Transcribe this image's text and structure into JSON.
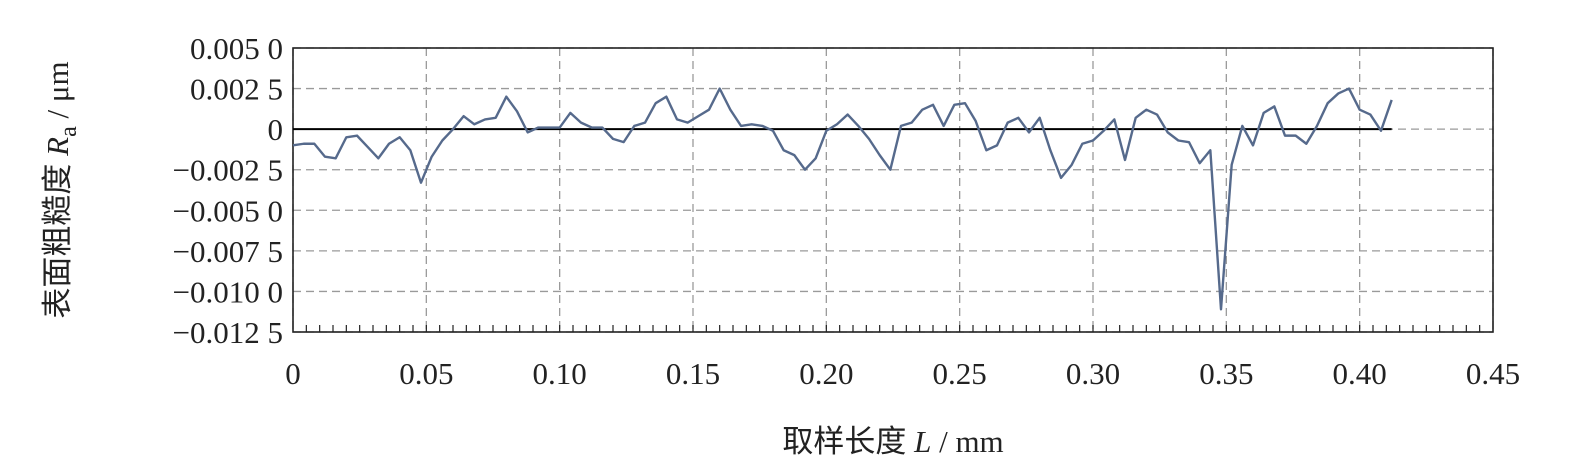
{
  "chart_data": {
    "type": "line",
    "xlabel": [
      "取样长度 ",
      "L",
      " / mm"
    ],
    "ylabel": [
      "表面粗糙度 ",
      "R",
      "a",
      " / μm"
    ],
    "xlim": [
      0,
      0.45
    ],
    "ylim": [
      -0.0125,
      0.005
    ],
    "xticks": [
      0,
      0.05,
      {
        "value": 0.1,
        "label": "0.10"
      },
      0.15,
      {
        "value": 0.2,
        "label": "0.20"
      },
      0.25,
      {
        "value": 0.3,
        "label": "0.30"
      },
      0.35,
      {
        "value": 0.4,
        "label": "0.40"
      },
      0.45
    ],
    "yticks": [
      {
        "value": 0.005,
        "label": "0.005 0"
      },
      {
        "value": 0.0025,
        "label": "0.002 5"
      },
      0,
      {
        "value": -0.0025,
        "label": "−0.002 5"
      },
      {
        "value": -0.005,
        "label": "−0.005 0"
      },
      {
        "value": -0.0075,
        "label": "−0.007 5"
      },
      {
        "value": -0.01,
        "label": "−0.010 0"
      },
      {
        "value": -0.0125,
        "label": "−0.012 5"
      }
    ],
    "x_minor_tick_step": 0.005,
    "grid": true,
    "hline": 0,
    "series": [
      {
        "color": "#566a8c",
        "x": [
          0,
          0.004,
          0.008,
          0.012,
          0.016,
          0.02,
          0.024,
          0.028,
          0.032,
          0.036,
          0.04,
          0.044,
          0.048,
          0.052,
          0.056,
          0.06,
          0.064,
          0.068,
          0.072,
          0.076,
          0.08,
          0.084,
          0.088,
          0.092,
          0.096,
          0.1,
          0.104,
          0.108,
          0.112,
          0.116,
          0.12,
          0.124,
          0.128,
          0.132,
          0.136,
          0.14,
          0.144,
          0.148,
          0.152,
          0.156,
          0.16,
          0.164,
          0.168,
          0.172,
          0.176,
          0.18,
          0.184,
          0.188,
          0.192,
          0.196,
          0.2,
          0.204,
          0.208,
          0.212,
          0.216,
          0.22,
          0.224,
          0.228,
          0.232,
          0.236,
          0.24,
          0.244,
          0.248,
          0.252,
          0.256,
          0.26,
          0.264,
          0.268,
          0.272,
          0.276,
          0.28,
          0.284,
          0.288,
          0.292,
          0.296,
          0.3,
          0.304,
          0.308,
          0.312,
          0.316,
          0.32,
          0.324,
          0.328,
          0.332,
          0.336,
          0.34,
          0.344,
          0.348,
          0.352,
          0.356,
          0.36,
          0.364,
          0.368,
          0.372,
          0.376,
          0.38,
          0.384,
          0.388,
          0.392,
          0.396,
          0.4,
          0.404,
          0.408,
          0.412
        ],
        "values": [
          -0.001,
          -0.0009,
          -0.0009,
          -0.0017,
          -0.0018,
          -0.0005,
          -0.0004,
          -0.0011,
          -0.0018,
          -0.0009,
          -0.0005,
          -0.0013,
          -0.0033,
          -0.0017,
          -0.0007,
          0,
          0.0008,
          0.0003,
          0.0006,
          0.0007,
          0.002,
          0.0011,
          -0.0002,
          0.0001,
          0.0001,
          0.0001,
          0.001,
          0.0004,
          0.0001,
          0.0001,
          -0.0006,
          -0.0008,
          0.0002,
          0.0004,
          0.0016,
          0.002,
          0.0006,
          0.0004,
          0.0008,
          0.0012,
          0.0025,
          0.0012,
          0.0002,
          0.0003,
          0.0002,
          -0.0001,
          -0.0013,
          -0.0016,
          -0.0025,
          -0.0018,
          -0.0001,
          0.0003,
          0.0009,
          0.0002,
          -0.0006,
          -0.0016,
          -0.0025,
          0.0002,
          0.0004,
          0.0012,
          0.0015,
          0.0002,
          0.0015,
          0.0016,
          0.0005,
          -0.0013,
          -0.001,
          0.0004,
          0.0007,
          -0.0002,
          0.0007,
          -0.0013,
          -0.003,
          -0.0022,
          -0.0009,
          -0.0007,
          -0.0001,
          0.0006,
          -0.0019,
          0.0007,
          0.0012,
          0.0009,
          -0.0002,
          -0.0007,
          -0.0008,
          -0.0021,
          -0.0013,
          -0.0111,
          -0.0022,
          0.0002,
          -0.001,
          0.001,
          0.0014,
          -0.0004,
          -0.0004,
          -0.0009,
          0.0002,
          0.0016,
          0.0022,
          0.0025,
          0.0012,
          0.0009,
          -0.0001,
          0.0018
        ]
      }
    ]
  }
}
